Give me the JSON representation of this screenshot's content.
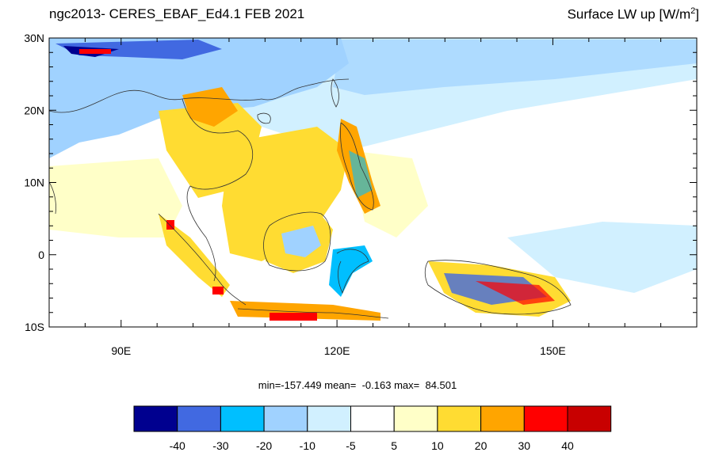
{
  "title_left": "ngc2013- CERES_EBAF_Ed4.1 FEB 2021",
  "title_right": {
    "text": "Surface LW up [W/m",
    "sup": "2",
    "close": "]"
  },
  "map": {
    "lat_range": [
      -10,
      30
    ],
    "lon_range": [
      80,
      170
    ],
    "y_tick_labels": [
      {
        "lat": 30,
        "label": "30N"
      },
      {
        "lat": 20,
        "label": "20N"
      },
      {
        "lat": 10,
        "label": "10N"
      },
      {
        "lat": 0,
        "label": "0"
      },
      {
        "lat": -10,
        "label": "10S"
      }
    ],
    "x_tick_labels": [
      {
        "lon": 90,
        "label": "90E"
      },
      {
        "lon": 120,
        "label": "120E"
      },
      {
        "lon": 150,
        "label": "150E"
      }
    ]
  },
  "stats": {
    "min": "min=-157.449",
    "mean": "mean=  -0.163",
    "max": "max=  84.501"
  },
  "colorbar": {
    "colors": [
      "#00008f",
      "#4169e1",
      "#00bfff",
      "#a0d2ff",
      "#d1f0ff",
      "#ffffff",
      "#ffffc8",
      "#ffdc32",
      "#ffa500",
      "#ff0000",
      "#c80000"
    ],
    "labels": [
      "-40",
      "-30",
      "-20",
      "-10",
      "-5",
      "5",
      "10",
      "20",
      "30",
      "40"
    ]
  }
}
